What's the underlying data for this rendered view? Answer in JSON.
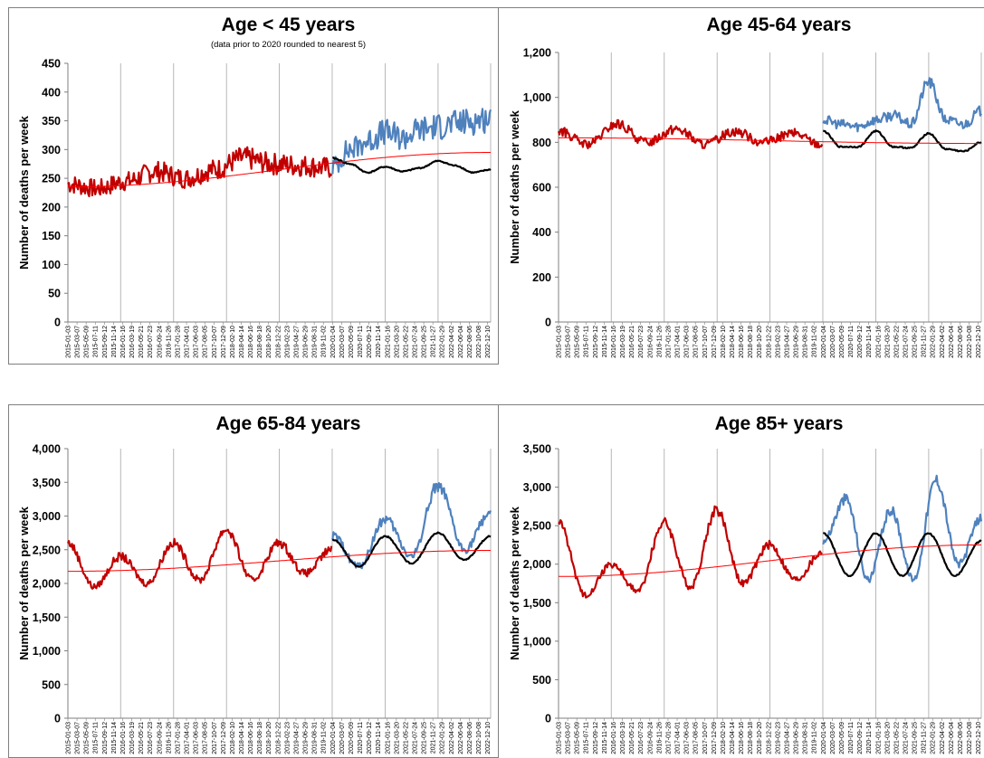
{
  "chart_data": [
    {
      "type": "line",
      "title": "Age < 45 years",
      "subtitle": "(data prior to 2020 rounded to nearest 5)",
      "xlabel": "",
      "ylabel": "Number of deaths per week",
      "ylim": [
        0,
        450
      ],
      "yticks": [
        0,
        50,
        100,
        150,
        200,
        250,
        300,
        350,
        400,
        450
      ],
      "ytick_labels": [
        "0",
        "50",
        "100",
        "150",
        "200",
        "250",
        "300",
        "350",
        "400",
        "450"
      ],
      "grid": "vertical lines at year boundaries",
      "series": [
        {
          "color": "#c00000",
          "x_range": [
            "2015-01-03",
            "2019-12-28"
          ],
          "trend": "seasonal, rising",
          "values": [
            240,
            232,
            245,
            262,
            250,
            265,
            285,
            275,
            272,
            268
          ]
        },
        {
          "color": "#4f81bd",
          "x_range": [
            "2020-01-04",
            "2022-12-31"
          ],
          "values": [
            270,
            300,
            315,
            330,
            320,
            335,
            340,
            345,
            350,
            355
          ]
        },
        {
          "color": "#000000",
          "x_range": [
            "2020-01-04",
            "2022-12-31"
          ],
          "values": [
            285,
            275,
            260,
            270,
            262,
            268,
            280,
            272,
            260,
            265
          ]
        },
        {
          "color": "#ff0000",
          "x_range": [
            "2015-01-03",
            "2022-12-31"
          ],
          "values": [
            235,
            295
          ]
        }
      ]
    },
    {
      "type": "line",
      "title": "Age 45-64 years",
      "xlabel": "",
      "ylabel": "Number of deaths per week",
      "ylim": [
        0,
        1200
      ],
      "yticks": [
        0,
        200,
        400,
        600,
        800,
        1000,
        1200
      ],
      "ytick_labels": [
        "0",
        "200",
        "400",
        "600",
        "800",
        "1,000",
        "1,200"
      ],
      "grid": "vertical lines at year boundaries",
      "series": [
        {
          "color": "#c00000",
          "x_range": [
            "2015-01-03",
            "2019-12-28"
          ],
          "values": [
            850,
            790,
            880,
            800,
            860,
            790,
            850,
            800,
            840,
            790
          ]
        },
        {
          "color": "#4f81bd",
          "x_range": [
            "2020-01-04",
            "2022-12-31"
          ],
          "values": [
            900,
            880,
            870,
            900,
            920,
            880,
            1070,
            900,
            880,
            940
          ]
        },
        {
          "color": "#000000",
          "x_range": [
            "2020-01-04",
            "2022-12-31"
          ],
          "values": [
            850,
            780,
            780,
            850,
            780,
            775,
            840,
            770,
            760,
            800
          ]
        },
        {
          "color": "#ff0000",
          "x_range": [
            "2015-01-03",
            "2022-12-31"
          ],
          "values": [
            820,
            795
          ]
        }
      ]
    },
    {
      "type": "line",
      "title": "Age 65-84 years",
      "xlabel": "",
      "ylabel": "Number of deaths per week",
      "ylim": [
        0,
        4000
      ],
      "yticks": [
        0,
        500,
        1000,
        1500,
        2000,
        2500,
        3000,
        3500,
        4000
      ],
      "ytick_labels": [
        "0",
        "500",
        "1,000",
        "1,500",
        "2,000",
        "2,500",
        "3,000",
        "3,500",
        "4,000"
      ],
      "grid": "vertical lines at year boundaries",
      "series": [
        {
          "color": "#c00000",
          "x_range": [
            "2015-01-03",
            "2019-12-28"
          ],
          "values": [
            2600,
            1950,
            2400,
            2000,
            2600,
            2050,
            2800,
            2050,
            2600,
            2150,
            2500
          ]
        },
        {
          "color": "#4f81bd",
          "x_range": [
            "2020-01-04",
            "2022-12-31"
          ],
          "values": [
            2700,
            2250,
            2950,
            2400,
            3450,
            2500,
            3050
          ]
        },
        {
          "color": "#000000",
          "x_range": [
            "2020-01-04",
            "2022-12-31"
          ],
          "values": [
            2650,
            2250,
            2700,
            2300,
            2750,
            2350,
            2700
          ]
        },
        {
          "color": "#ff0000",
          "x_range": [
            "2015-01-03",
            "2022-12-31"
          ],
          "values": [
            2180,
            2490
          ]
        }
      ]
    },
    {
      "type": "line",
      "title": "Age 85+ years",
      "xlabel": "",
      "ylabel": "Number of deaths per week",
      "ylim": [
        0,
        3500
      ],
      "yticks": [
        0,
        500,
        1000,
        1500,
        2000,
        2500,
        3000,
        3500
      ],
      "ytick_labels": [
        "0",
        "500",
        "1,000",
        "1,500",
        "2,000",
        "2,500",
        "3,000",
        "3,500"
      ],
      "grid": "vertical lines at year boundaries",
      "series": [
        {
          "color": "#c00000",
          "x_range": [
            "2015-01-03",
            "2019-12-28"
          ],
          "values": [
            2550,
            1600,
            2000,
            1650,
            2550,
            1700,
            2700,
            1750,
            2250,
            1800,
            2150
          ]
        },
        {
          "color": "#4f81bd",
          "x_range": [
            "2020-01-04",
            "2022-12-31"
          ],
          "values": [
            2300,
            2850,
            1800,
            2700,
            1800,
            3100,
            2000,
            2600
          ]
        },
        {
          "color": "#000000",
          "x_range": [
            "2020-01-04",
            "2022-12-31"
          ],
          "values": [
            2400,
            1850,
            2400,
            1850,
            2400,
            1850,
            2300
          ]
        },
        {
          "color": "#ff0000",
          "x_range": [
            "2015-01-03",
            "2022-12-31"
          ],
          "values": [
            1840,
            2250
          ]
        }
      ]
    }
  ]
}
